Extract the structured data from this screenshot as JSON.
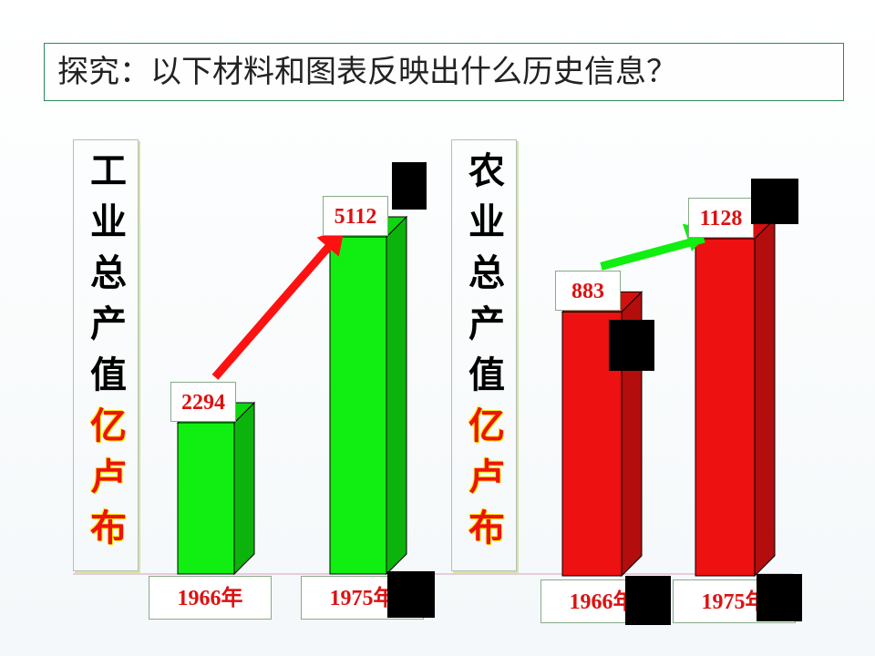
{
  "header": {
    "title": "探究：以下材料和图表反映出什么历史信息？"
  },
  "chart_data": [
    {
      "type": "bar3d",
      "title": "工业总产值",
      "unit": "亿卢布",
      "categories": [
        "1966年",
        "1975年"
      ],
      "values": [
        2294,
        5112
      ],
      "color": "#11ee11",
      "arrow_color": "#ff1111"
    },
    {
      "type": "bar3d",
      "title": "农业总产值",
      "unit": "亿卢布",
      "categories": [
        "1966年",
        "1975年"
      ],
      "values": [
        883,
        1128
      ],
      "color": "#ee1111",
      "arrow_color": "#11ee11"
    }
  ]
}
